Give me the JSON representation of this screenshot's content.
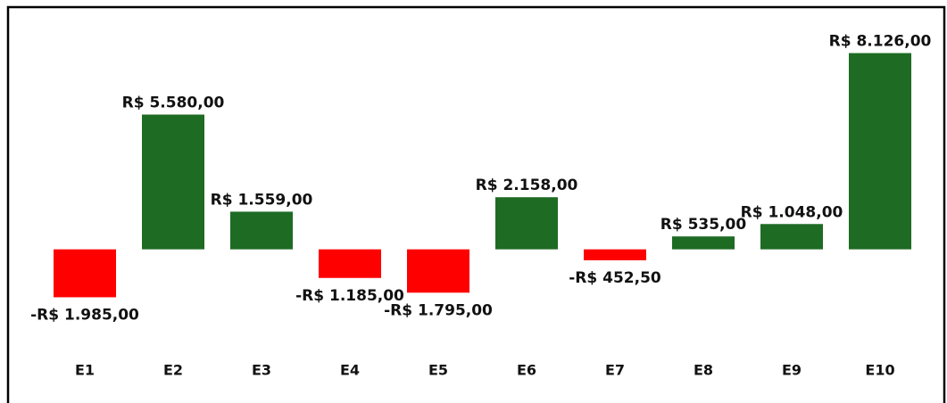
{
  "chart_data": {
    "type": "bar",
    "categories": [
      "E1",
      "E2",
      "E3",
      "E4",
      "E5",
      "E6",
      "E7",
      "E8",
      "E9",
      "E10"
    ],
    "values": [
      -1985,
      5580,
      1559,
      -1185,
      -1795,
      2158,
      -452.5,
      535,
      1048,
      8126
    ],
    "value_labels": [
      "-R$ 1.985,00",
      "R$ 5.580,00",
      "R$ 1.559,00",
      "-R$ 1.185,00",
      "-R$ 1.795,00",
      "R$ 2.158,00",
      "-R$ 452,50",
      "R$ 535,00",
      "R$ 1.048,00",
      "R$ 8.126,00"
    ],
    "positive_color": "#1e6b23",
    "negative_color": "#ff0000",
    "ylim": [
      -4000,
      8700
    ],
    "grid": false
  }
}
